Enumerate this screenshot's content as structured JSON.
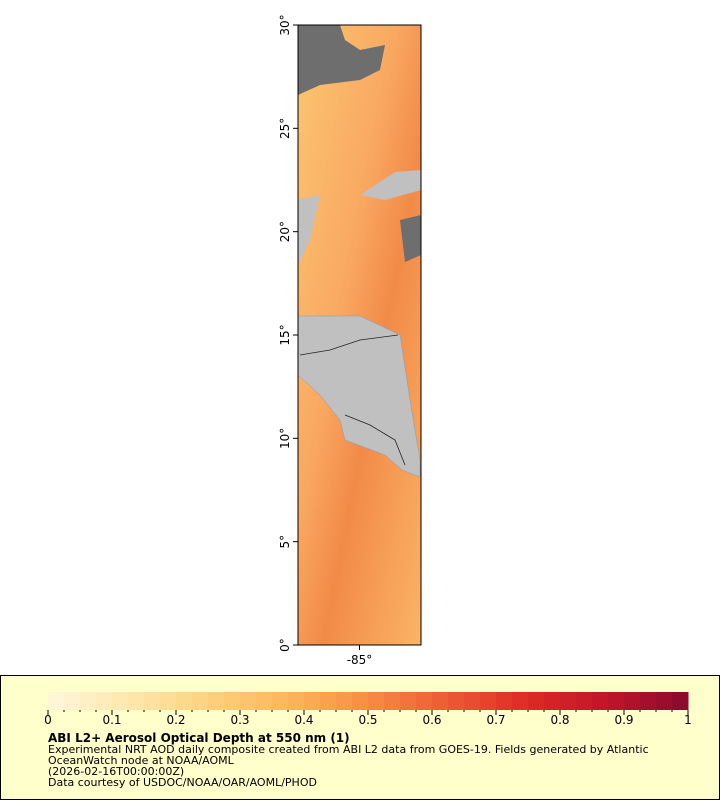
{
  "chart_data": {
    "type": "map",
    "xlim": [
      -88,
      -82
    ],
    "ylim": [
      0,
      30
    ],
    "xticks": [
      {
        "value": -85,
        "label": "-85°"
      }
    ],
    "yticks": [
      {
        "value": 0,
        "label": "0°"
      },
      {
        "value": 5,
        "label": "5°"
      },
      {
        "value": 10,
        "label": "10°"
      },
      {
        "value": 15,
        "label": "15°"
      },
      {
        "value": 20,
        "label": "20°"
      },
      {
        "value": 25,
        "label": "25°"
      },
      {
        "value": 30,
        "label": "30°"
      }
    ],
    "title": "ABI L2+ Aerosol Optical Depth at 550 nm (1)",
    "description": [
      "Experimental NRT AOD daily composite created from ABI L2 data from GOES-19. Fields generated by Atlantic",
      "OceanWatch node at NOAA/AOML",
      "(2026-02-16T00:00:00Z)",
      "Data courtesy of USDOC/NOAA/OAR/AOML/PHOD"
    ],
    "colorbar": {
      "range": [
        0,
        1
      ],
      "ticks": [
        0,
        0.1,
        0.2,
        0.3,
        0.4,
        0.5,
        0.6,
        0.7,
        0.8,
        0.9,
        1
      ],
      "colors": [
        "#fff6dc",
        "#fee8ae",
        "#fdd27e",
        "#fcb65c",
        "#f88c44",
        "#ee5a34",
        "#dd2a24",
        "#c0142a",
        "#8a0a2e"
      ]
    }
  }
}
